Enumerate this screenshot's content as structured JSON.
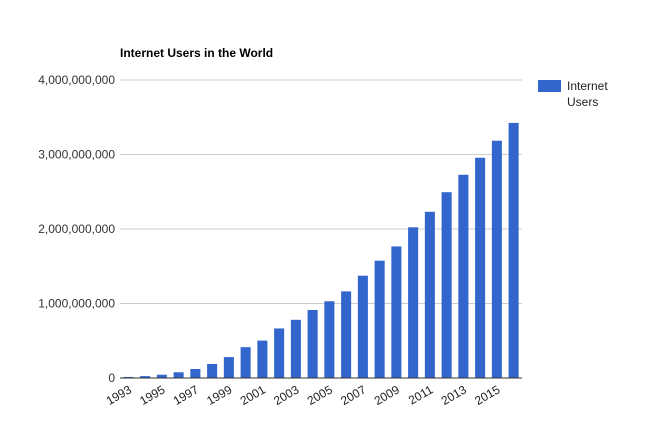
{
  "chart_data": {
    "type": "bar",
    "title": "Internet Users in the World",
    "xlabel": "",
    "ylabel": "",
    "categories": [
      "1993",
      "1994",
      "1995",
      "1996",
      "1997",
      "1998",
      "1999",
      "2000",
      "2001",
      "2002",
      "2003",
      "2004",
      "2005",
      "2006",
      "2007",
      "2008",
      "2009",
      "2010",
      "2011",
      "2012",
      "2013",
      "2014",
      "2015",
      "2016"
    ],
    "x_tick_labels": [
      "1993",
      "1995",
      "1997",
      "1999",
      "2001",
      "2003",
      "2005",
      "2007",
      "2009",
      "2011",
      "2013",
      "2015"
    ],
    "series": [
      {
        "name": "Internet Users",
        "color": "#3366cc",
        "values": [
          14000000,
          25000000,
          44000000,
          77000000,
          121000000,
          188000000,
          281000000,
          414000000,
          502000000,
          665000000,
          781000000,
          913000000,
          1030000000,
          1163000000,
          1373000000,
          1575000000,
          1766000000,
          2023000000,
          2231000000,
          2494000000,
          2728000000,
          2956000000,
          3185000000,
          3424000000
        ]
      }
    ],
    "ylim": [
      0,
      4000000000
    ],
    "y_ticks": [
      0,
      1000000000,
      2000000000,
      3000000000,
      4000000000
    ],
    "y_tick_labels": [
      "0",
      "1,000,000,000",
      "2,000,000,000",
      "3,000,000,000",
      "4,000,000,000"
    ],
    "grid": true,
    "legend_position": "top-right"
  }
}
